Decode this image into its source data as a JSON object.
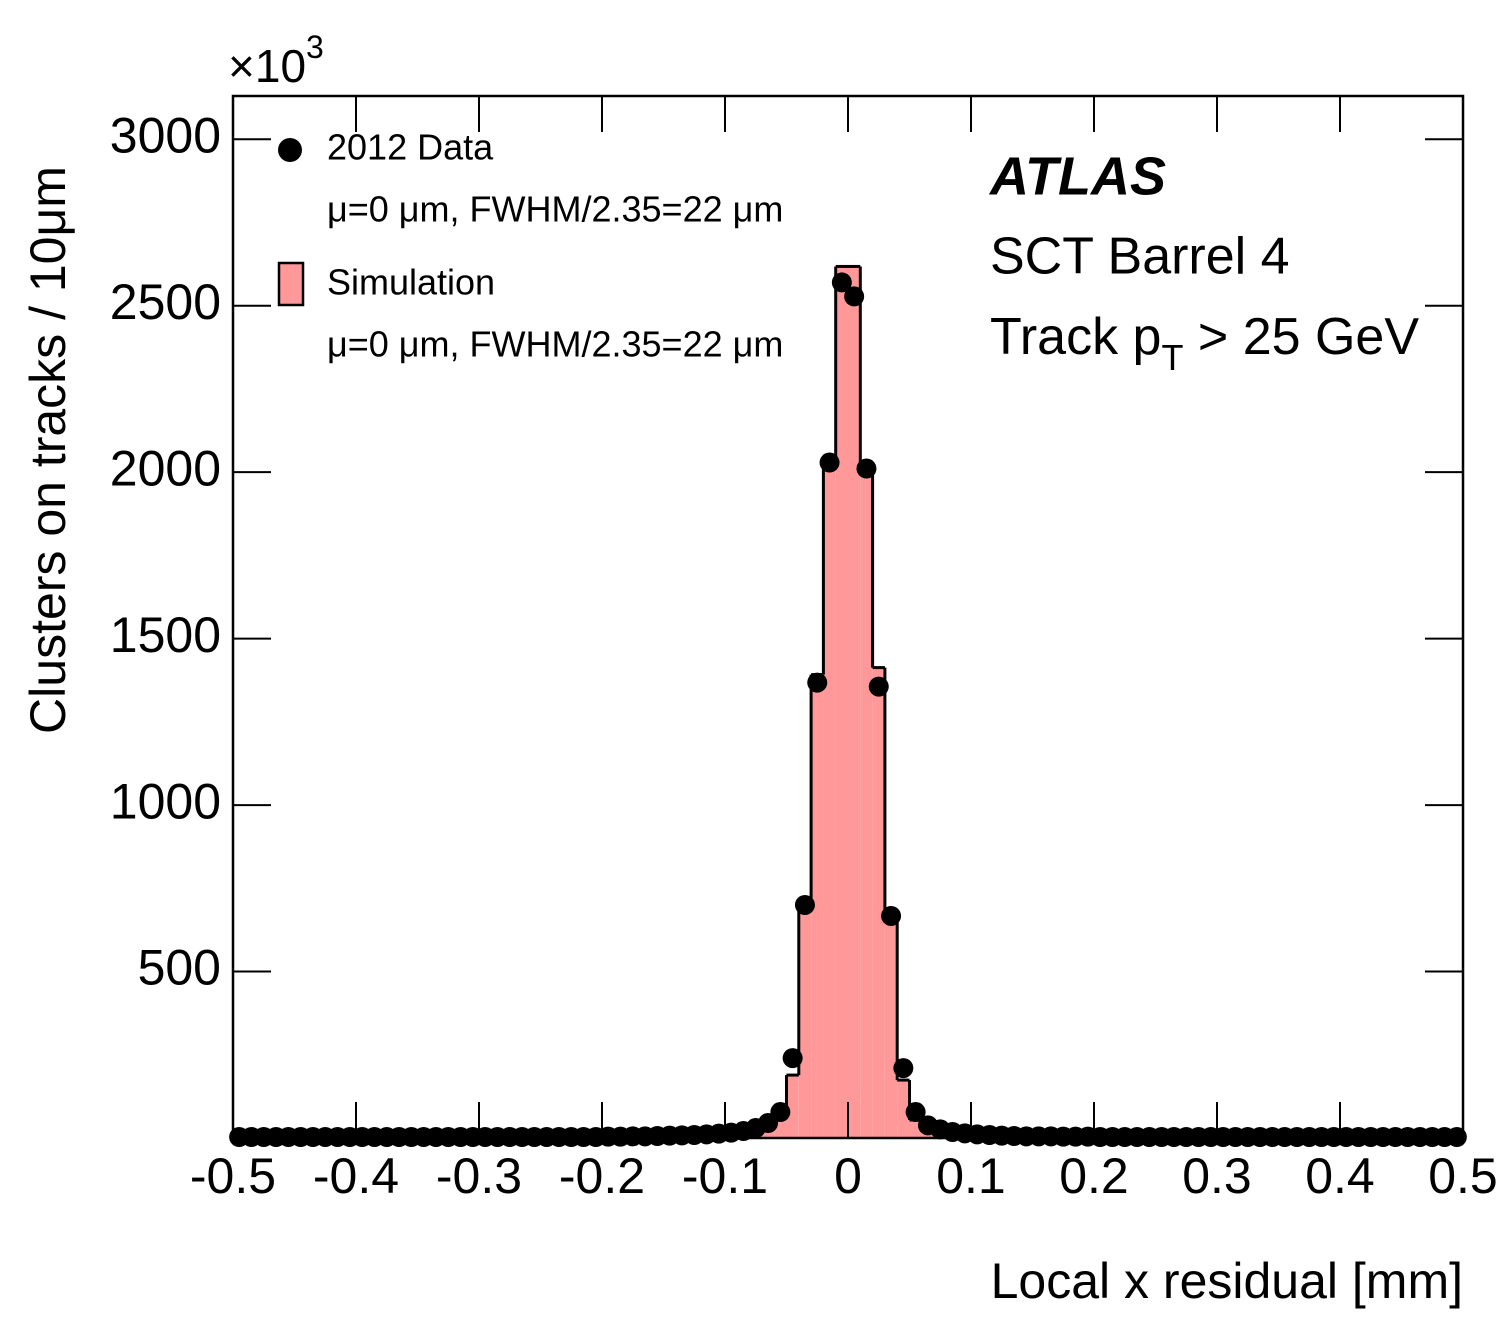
{
  "chart_data": {
    "type": "histogram",
    "x_label": "Local x residual [mm]",
    "y_label": "Clusters on tracks / 10μm",
    "y_multiplier": "×10",
    "y_multiplier_exp": "3",
    "annotations": {
      "experiment": "ATLAS",
      "detector": "SCT Barrel 4",
      "cut_prefix": "Track p",
      "cut_sub": "T",
      "cut_suffix": " > 25 GeV"
    },
    "bins": [
      -0.5,
      -0.49,
      -0.48,
      -0.47,
      -0.46,
      -0.45,
      -0.44,
      -0.43,
      -0.42,
      -0.41,
      -0.4,
      -0.39,
      -0.38,
      -0.37,
      -0.36,
      -0.35,
      -0.34,
      -0.33,
      -0.32,
      -0.31,
      -0.3,
      -0.29,
      -0.28,
      -0.27,
      -0.26,
      -0.25,
      -0.24,
      -0.23,
      -0.22,
      -0.21,
      -0.2,
      -0.19,
      -0.18,
      -0.17,
      -0.16,
      -0.15,
      -0.14,
      -0.13,
      -0.12,
      -0.11,
      -0.1,
      -0.09,
      -0.08,
      -0.07,
      -0.06,
      -0.05,
      -0.04,
      -0.03,
      -0.02,
      -0.01,
      0,
      0.01,
      0.02,
      0.03,
      0.04,
      0.05,
      0.06,
      0.07,
      0.08,
      0.09,
      0.1,
      0.11,
      0.12,
      0.13,
      0.14,
      0.15,
      0.16,
      0.17,
      0.18,
      0.19,
      0.2,
      0.21,
      0.22,
      0.23,
      0.24,
      0.25,
      0.26,
      0.27,
      0.28,
      0.29,
      0.3,
      0.31,
      0.32,
      0.33,
      0.34,
      0.35,
      0.36,
      0.37,
      0.38,
      0.39,
      0.4,
      0.41,
      0.42,
      0.43,
      0.44,
      0.45,
      0.46,
      0.47,
      0.48,
      0.49,
      0.5
    ],
    "series": [
      {
        "name": "Simulation",
        "note": "μ=0 μm, FWHM/2.35=22 μm",
        "color": "#ff9999",
        "style": "hist",
        "values": [
          3,
          3,
          3,
          3,
          3,
          3,
          3,
          3,
          3,
          3,
          3,
          3,
          3,
          3,
          3,
          3,
          3,
          3,
          3,
          3,
          3,
          3,
          3,
          3,
          3,
          3,
          3,
          3,
          3,
          3,
          4,
          4,
          5,
          5,
          6,
          7,
          8,
          9,
          10,
          12,
          15,
          19,
          27,
          40,
          69,
          189,
          685,
          1392,
          2029,
          2618,
          2618,
          2023,
          1413,
          685,
          174,
          54,
          35,
          24,
          17,
          13,
          10,
          8,
          7,
          6,
          5,
          5,
          5,
          4,
          4,
          4,
          3,
          3,
          3,
          3,
          3,
          3,
          3,
          3,
          3,
          3,
          3,
          3,
          3,
          3,
          3,
          3,
          3,
          3,
          3,
          3,
          3,
          3,
          3,
          3,
          3,
          3,
          3,
          3,
          3,
          3
        ]
      },
      {
        "name": "2012 Data",
        "note": "μ=0 μm, FWHM/2.35=22 μm",
        "color": "#000000",
        "style": "points",
        "values": [
          3,
          3,
          3,
          3,
          3,
          3,
          3,
          3,
          3,
          3,
          3,
          3,
          3,
          3,
          3,
          3,
          3,
          3,
          3,
          3,
          3,
          3,
          3,
          3,
          3,
          3,
          3,
          3,
          3,
          3,
          4,
          4,
          5,
          5,
          6,
          7,
          8,
          9,
          11,
          13,
          16,
          21,
          30,
          45,
          78,
          240,
          700,
          1368,
          2029,
          2570,
          2528,
          2011,
          1356,
          667,
          210,
          78,
          38,
          26,
          18,
          14,
          11,
          9,
          7,
          6,
          5,
          5,
          5,
          4,
          4,
          4,
          3,
          3,
          3,
          3,
          3,
          3,
          3,
          3,
          3,
          3,
          3,
          3,
          3,
          3,
          3,
          3,
          3,
          3,
          3,
          3,
          3,
          3,
          3,
          3,
          3,
          3,
          3,
          3,
          3,
          3
        ]
      }
    ],
    "xlim": [
      -0.5,
      0.5
    ],
    "xticks": [
      -0.5,
      -0.4,
      -0.3,
      -0.2,
      -0.1,
      0,
      0.1,
      0.2,
      0.3,
      0.4,
      0.5
    ],
    "ylim": [
      0,
      3130
    ],
    "yticks": [
      500,
      1000,
      1500,
      2000,
      2500,
      3000
    ]
  }
}
